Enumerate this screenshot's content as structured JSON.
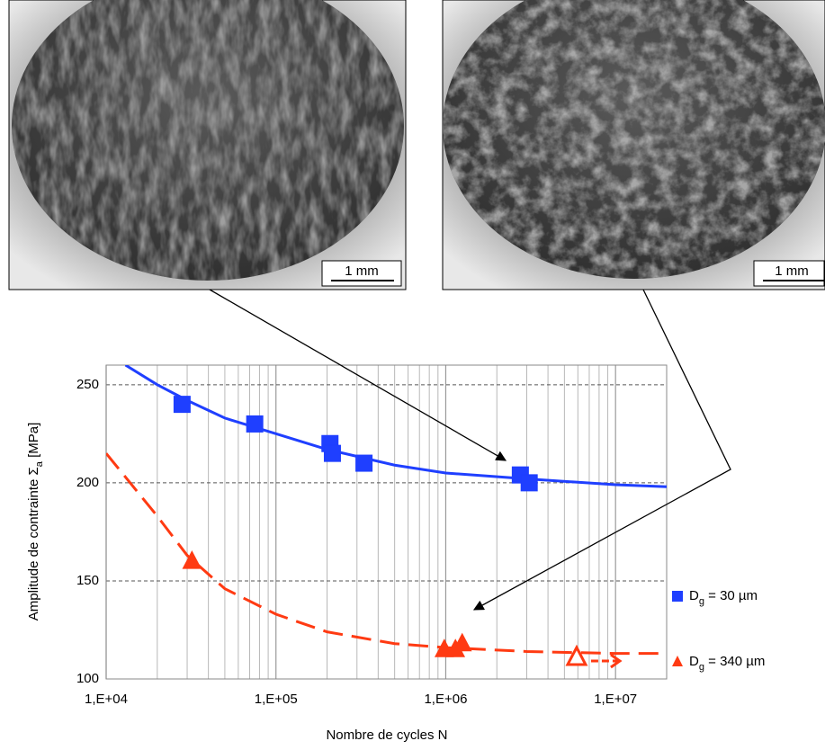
{
  "images": [
    {
      "scale_label": "1 mm"
    },
    {
      "scale_label": "1 mm"
    }
  ],
  "chart_data": {
    "type": "scatter",
    "xlabel": "Nombre de cycles  N",
    "ylabel": {
      "base": "Amplitude de contrainte  Σ",
      "sub": "a",
      "rest": " [MPa]"
    },
    "xlog": true,
    "grid": true,
    "minor_grid": true,
    "xlim": [
      10000,
      20000000
    ],
    "ylim": [
      100,
      260
    ],
    "xticks": [
      {
        "value": 10000,
        "label": "1,E+04"
      },
      {
        "value": 100000,
        "label": "1,E+05"
      },
      {
        "value": 1000000,
        "label": "1,E+06"
      },
      {
        "value": 10000000,
        "label": "1,E+07"
      }
    ],
    "yticks": [
      100,
      150,
      200,
      250
    ],
    "legend": "right",
    "series": [
      {
        "name": {
          "base": "D",
          "sub": "g",
          "rest": " = 30 µm"
        },
        "color": "#1f3fff",
        "marker": "square",
        "x": [
          28000,
          75000,
          208000,
          215000,
          330000,
          2750000,
          3100000
        ],
        "values": [
          240,
          230,
          220,
          215,
          210,
          204,
          200
        ],
        "runout": [
          false,
          false,
          false,
          false,
          false,
          false,
          false
        ],
        "curve": {
          "style": "solid",
          "x": [
            13000,
            20000,
            30000,
            50000,
            100000,
            200000,
            500000,
            1000000,
            3000000,
            10000000,
            20000000
          ],
          "values": [
            260,
            250,
            242,
            233,
            225,
            217,
            209,
            205,
            202,
            199,
            198
          ]
        }
      },
      {
        "name": {
          "base": "D",
          "sub": "g",
          "rest": " = 340 µm"
        },
        "color": "#ff3a12",
        "marker": "triangle",
        "x": [
          32000,
          980000,
          1140000,
          1250000,
          5900000
        ],
        "values": [
          160,
          115,
          115,
          118,
          111
        ],
        "runout": [
          false,
          false,
          false,
          false,
          true
        ],
        "curve": {
          "style": "dashed",
          "x": [
            10000,
            20000,
            30000,
            50000,
            100000,
            200000,
            500000,
            1000000,
            3000000,
            10000000,
            20000000
          ],
          "values": [
            215,
            183,
            163,
            146,
            133,
            124,
            118,
            116,
            114,
            113,
            113
          ]
        }
      }
    ]
  }
}
